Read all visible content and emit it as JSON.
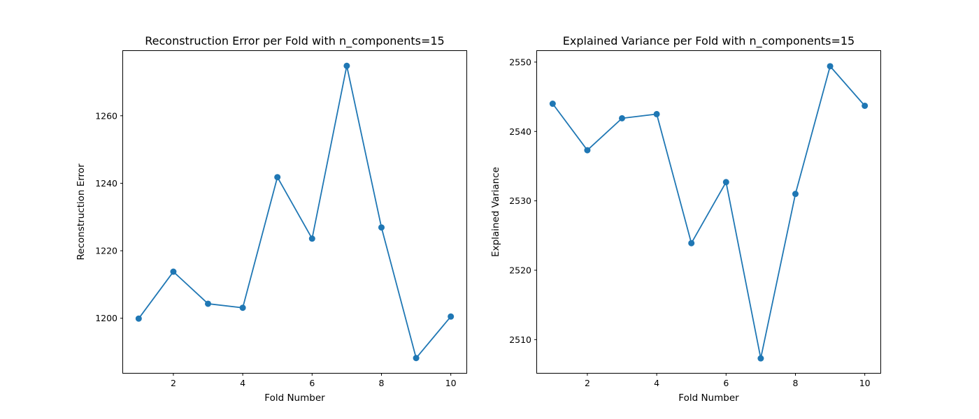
{
  "chart_data": [
    {
      "type": "line",
      "title": "Reconstruction Error per Fold with n_components=15",
      "xlabel": "Fold Number",
      "ylabel": "Reconstruction Error",
      "x": [
        1,
        2,
        3,
        4,
        5,
        6,
        7,
        8,
        9,
        10
      ],
      "series": [
        {
          "values": [
            1199.9,
            1213.8,
            1204.3,
            1203.1,
            1241.8,
            1223.6,
            1274.8,
            1226.9,
            1188.2,
            1200.5
          ]
        }
      ],
      "xlim": [
        0.55,
        10.45
      ],
      "ylim": [
        1183.8,
        1279.2
      ],
      "xticks": [
        2,
        4,
        6,
        8,
        10
      ],
      "yticks": [
        1200,
        1220,
        1240,
        1260
      ],
      "grid": false,
      "color": "#1f77b4",
      "marker": "circle"
    },
    {
      "type": "line",
      "title": "Explained Variance per Fold with n_components=15",
      "xlabel": "Fold Number",
      "ylabel": "Explained Variance",
      "x": [
        1,
        2,
        3,
        4,
        5,
        6,
        7,
        8,
        9,
        10
      ],
      "series": [
        {
          "values": [
            2544.0,
            2537.3,
            2541.9,
            2542.5,
            2523.9,
            2532.7,
            2507.3,
            2531.0,
            2549.4,
            2543.7
          ]
        }
      ],
      "xlim": [
        0.55,
        10.45
      ],
      "ylim": [
        2505.2,
        2551.6
      ],
      "xticks": [
        2,
        4,
        6,
        8,
        10
      ],
      "yticks": [
        2510,
        2520,
        2530,
        2540,
        2550
      ],
      "grid": false,
      "color": "#1f77b4",
      "marker": "circle"
    }
  ]
}
